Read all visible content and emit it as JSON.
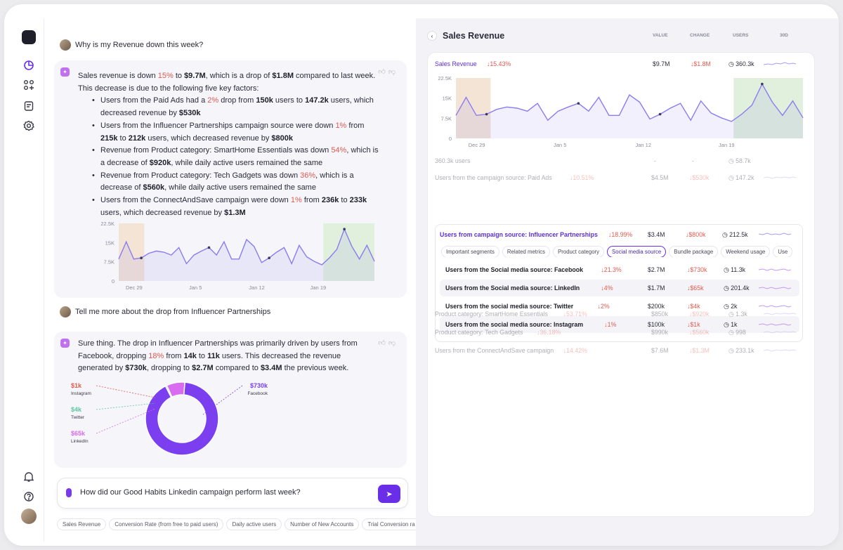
{
  "rail": {
    "icons": [
      "logo-icon",
      "analytics-icon",
      "apps-icon",
      "notes-icon",
      "settings-icon",
      "bell-icon",
      "help-icon",
      "user-avatar"
    ]
  },
  "chat": {
    "q1": "Why is my Revenue down this week?",
    "a1": {
      "p1_a": "Sales revenue is down ",
      "p1_pct": "15%",
      "p1_b": " to ",
      "p1_val": "$9.7M",
      "p1_c": ", which is a drop of ",
      "p1_drop": "$1.8M",
      "p1_d": " compared to last week.",
      "p2": "This decrease is due to the following five key factors:",
      "bullets": [
        {
          "a": "Users from the Paid Ads had a ",
          "pct": "2%",
          "b": " drop from ",
          "v1": "150k",
          "c": " users to ",
          "v2": "147.2k",
          "d": " users, which decreased revenue by ",
          "v3": "$530k",
          "e": ""
        },
        {
          "a": "Users from the Influencer Partnerships campaign source were down ",
          "pct": "1%",
          "b": " from ",
          "v1": "215k",
          "c": " to ",
          "v2": "212k",
          "d": " users, which decreased revenue by ",
          "v3": "$800k",
          "e": ""
        },
        {
          "a": "Revenue from Product category: SmartHome Essentials was down ",
          "pct": "54%",
          "b": ", which is a decrease of ",
          "v1": "$920k",
          "c": ", while daily active users remained the same",
          "v2": "",
          "d": "",
          "v3": "",
          "e": ""
        },
        {
          "a": "Revenue from Product category: Tech Gadgets was down ",
          "pct": "36%",
          "b": ", which is a decrease of ",
          "v1": "$560k",
          "c": ", while daily active users remained the same",
          "v2": "",
          "d": "",
          "v3": "",
          "e": ""
        },
        {
          "a": "Users from the ConnectAndSave campaign were down ",
          "pct": "1%",
          "b": " from ",
          "v1": "236k",
          "c": " to ",
          "v2": "233k",
          "d": " users, which decreased revenue by ",
          "v3": "$1.3M",
          "e": ""
        }
      ],
      "chart": {
        "yticks": [
          "22.5K",
          "15K",
          "7.5K",
          "0"
        ],
        "xticks": [
          "Dec 29",
          "Jan 5",
          "Jan 12",
          "Jan 19"
        ]
      }
    },
    "q2": "Tell me more about the drop from Influencer Partnerships",
    "a2": {
      "t1": "Sure thing. The drop in Influencer Partnerships was primarily driven by users from",
      "t2a": "Facebook, dropping ",
      "t2pct": "18%",
      "t2b": " from ",
      "t2v1": "14k",
      "t2c": " to ",
      "t2v2": "11k",
      "t2d": " users. This decreased the revenue",
      "t3a": "generated by ",
      "t3v1": "$730k",
      "t3b": ", dropping to ",
      "t3v2": "$2.7M",
      "t3c": " compared to ",
      "t3v3": "$3.4M",
      "t3d": " the previous week.",
      "donut": [
        {
          "value": "$1k",
          "label": "Instagram",
          "color": "#e05a4f"
        },
        {
          "value": "$4k",
          "label": "Twitter",
          "color": "#5cc7a0"
        },
        {
          "value": "$65k",
          "label": "LinkedIn",
          "color": "#d86bf0"
        },
        {
          "value": "$730k",
          "label": "Facebook",
          "color": "#7b3ff0"
        }
      ]
    },
    "input": "How did our Good Habits Linkedin campaign perform last week?",
    "chips": [
      "Sales Revenue",
      "Conversion Rate (from free to paid users)",
      "Daily active users",
      "Number of New Accounts",
      "Trial Conversion ra"
    ]
  },
  "panel": {
    "title": "Sales Revenue",
    "cols": [
      "VALUE",
      "CHANGE",
      "USERS",
      "30D"
    ],
    "main": {
      "name": "Sales Revenue",
      "chg": "15.43%",
      "value": "$9.7M",
      "change": "$1.8M",
      "users": "360.3k"
    },
    "chart": {
      "yticks": [
        "22.5K",
        "15K",
        "7.5K",
        "0"
      ],
      "xticks": [
        "Dec 29",
        "Jan 5",
        "Jan 12",
        "Jan 19"
      ]
    },
    "usersRow": {
      "name": "360.3k users",
      "value": "-",
      "change": "-",
      "users": "58.7k"
    },
    "rows_top": [
      {
        "name": "Users from the campaign source: Paid Ads",
        "chg": "10.51%",
        "value": "$4.5M",
        "change": "$530k",
        "users": "147.2k"
      }
    ],
    "expanded": {
      "name": "Users from campaign source: Influencer Partnerships",
      "chg": "18.99%",
      "value": "$3.4M",
      "change": "$800k",
      "users": "212.5k"
    },
    "tabs": [
      "Important segments",
      "Related metrics",
      "Product category",
      "Social media source",
      "Bundle package",
      "Weekend usage",
      "Use"
    ],
    "sub": [
      {
        "name": "Users from the Social media source: Facebook",
        "chg": "21.3%",
        "value": "$2.7M",
        "change": "$730k",
        "users": "11.3k"
      },
      {
        "name": "Users from the Social media source: LinkedIn",
        "chg": "4%",
        "value": "$1.7M",
        "change": "$65k",
        "users": "201.4k"
      },
      {
        "name": "Users from the social media source: Twitter",
        "chg": "2%",
        "value": "$200k",
        "change": "$4k",
        "users": "2k"
      },
      {
        "name": "Users from the social media source: Instagram",
        "chg": "1%",
        "value": "$100k",
        "change": "$1k",
        "users": "1k"
      }
    ],
    "rows_bottom": [
      {
        "name": "Product category: SmartHome Essentials",
        "chg": "53.71%",
        "value": "$850k",
        "change": "$920k",
        "users": "1.3k"
      },
      {
        "name": "Product category: Tech Gadgets",
        "chg": "36.18%",
        "value": "$990k",
        "change": "$560k",
        "users": "998"
      },
      {
        "name": "Users from the ConnectAndSave campaign",
        "chg": "14.42%",
        "value": "$7.6M",
        "change": "$1.3M",
        "users": "233.1k"
      }
    ]
  },
  "colors": {
    "accent": "#6b2ee8",
    "down": "#e05a4f",
    "highlight_left": "#f3e4d6",
    "highlight_right": "#e1f0dd"
  }
}
